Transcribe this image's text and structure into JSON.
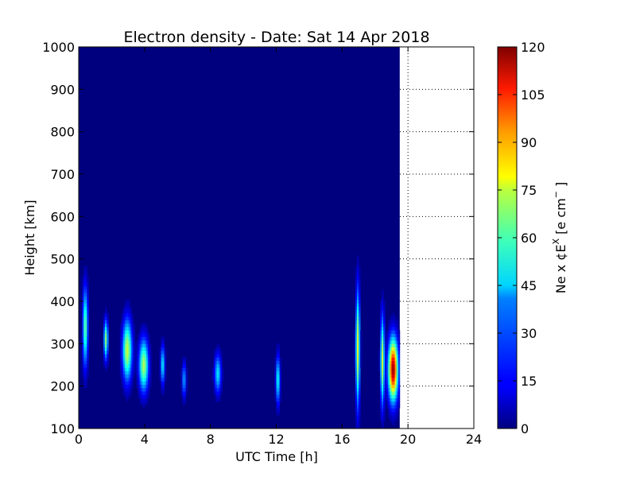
{
  "chart_data": {
    "type": "heatmap",
    "title": "Electron density - Date: Sat 14 Apr 2018",
    "xlabel": "UTC Time [h]",
    "ylabel": "Height [km]",
    "xlim": [
      0,
      24
    ],
    "ylim": [
      100,
      1000
    ],
    "x_ticks": [
      "0",
      "4",
      "8",
      "12",
      "16",
      "20",
      "24"
    ],
    "y_ticks": [
      "100",
      "200",
      "300",
      "400",
      "500",
      "600",
      "700",
      "800",
      "900",
      "1000"
    ],
    "data_end_hour": 19.5,
    "grid": "dotted, outside data region only",
    "colormap": "jet",
    "background_color": "#00007f",
    "colorbar": {
      "label": "Ne x ¢E^X  [e cm^-]",
      "ticks": [
        "0",
        "15",
        "30",
        "45",
        "60",
        "75",
        "90",
        "105",
        "120"
      ],
      "range": [
        0,
        120
      ]
    },
    "events": [
      {
        "t": 0.4,
        "h": 340,
        "peak": 58,
        "t_width": 0.15,
        "h_sigma": 90
      },
      {
        "t": 1.65,
        "h": 310,
        "peak": 62,
        "t_width": 0.12,
        "h_sigma": 45
      },
      {
        "t": 2.95,
        "h": 285,
        "peak": 68,
        "t_width": 0.28,
        "h_sigma": 70
      },
      {
        "t": 3.95,
        "h": 250,
        "peak": 65,
        "t_width": 0.28,
        "h_sigma": 60
      },
      {
        "t": 5.1,
        "h": 250,
        "peak": 45,
        "t_width": 0.12,
        "h_sigma": 45
      },
      {
        "t": 6.4,
        "h": 215,
        "peak": 35,
        "t_width": 0.12,
        "h_sigma": 40
      },
      {
        "t": 8.45,
        "h": 230,
        "peak": 42,
        "t_width": 0.2,
        "h_sigma": 45
      },
      {
        "t": 12.1,
        "h": 215,
        "peak": 48,
        "t_width": 0.12,
        "h_sigma": 55
      },
      {
        "t": 16.95,
        "h": 290,
        "peak": 72,
        "t_width": 0.12,
        "h_sigma": 130
      },
      {
        "t": 18.45,
        "h": 260,
        "peak": 68,
        "t_width": 0.12,
        "h_sigma": 100
      },
      {
        "t": 19.1,
        "h": 240,
        "peak": 118,
        "t_width": 0.28,
        "h_sigma": 70
      }
    ]
  }
}
